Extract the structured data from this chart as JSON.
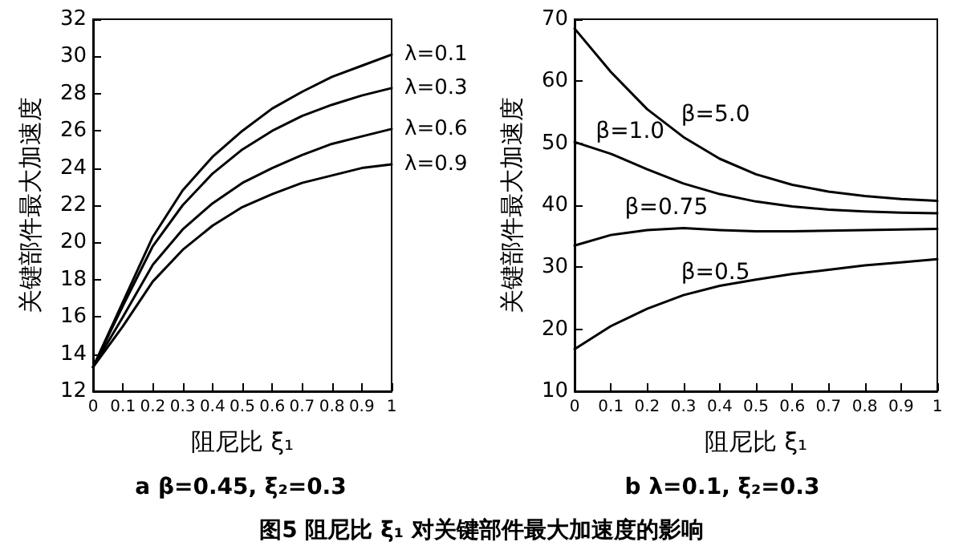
{
  "chart_data": [
    {
      "type": "line",
      "subtitle": "a β=0.45, ξ₂=0.3",
      "xlabel": "阻尼比 ξ₁",
      "ylabel": "关键部件最大加速度",
      "x": [
        0,
        0.1,
        0.2,
        0.3,
        0.4,
        0.5,
        0.6,
        0.7,
        0.8,
        0.9,
        1
      ],
      "series": [
        {
          "name": "λ=0.1",
          "color": "#000000",
          "values": [
            13.3,
            16.8,
            20.3,
            22.8,
            24.6,
            26.0,
            27.2,
            28.1,
            28.9,
            29.5,
            30.1
          ]
        },
        {
          "name": "λ=0.3",
          "color": "#000000",
          "values": [
            13.3,
            16.6,
            19.8,
            22.0,
            23.7,
            25.0,
            26.0,
            26.8,
            27.4,
            27.9,
            28.3
          ]
        },
        {
          "name": "λ=0.6",
          "color": "#000000",
          "values": [
            13.3,
            16.0,
            18.8,
            20.7,
            22.1,
            23.2,
            24.0,
            24.7,
            25.3,
            25.7,
            26.1
          ]
        },
        {
          "name": "λ=0.9",
          "color": "#000000",
          "values": [
            13.3,
            15.5,
            17.9,
            19.6,
            20.9,
            21.9,
            22.6,
            23.2,
            23.6,
            24.0,
            24.2
          ]
        }
      ],
      "xlim": [
        0,
        1
      ],
      "xticks": [
        0,
        0.1,
        0.2,
        0.3,
        0.4,
        0.5,
        0.6,
        0.7,
        0.8,
        0.9,
        1
      ],
      "ylim": [
        12,
        32
      ],
      "yticks": [
        12,
        14,
        16,
        18,
        20,
        22,
        24,
        26,
        28,
        30,
        32
      ],
      "grid": false,
      "legend": false,
      "marker": "none",
      "line_style": "solid",
      "annotations": [
        "图5 阻尼比 ξ₁ 对关键部件最大加速度的影响"
      ]
    },
    {
      "type": "line",
      "subtitle": "b λ=0.1, ξ₂=0.3",
      "xlabel": "阻尼比 ξ₁",
      "ylabel": "关键部件最大加速度",
      "x": [
        0,
        0.1,
        0.2,
        0.3,
        0.4,
        0.5,
        0.6,
        0.7,
        0.8,
        0.9,
        1
      ],
      "series": [
        {
          "name": "β=5.0",
          "color": "#000000",
          "values": [
            68.5,
            61.5,
            55.5,
            51.0,
            47.5,
            45.0,
            43.3,
            42.2,
            41.5,
            41.0,
            40.7
          ]
        },
        {
          "name": "β=1.0",
          "color": "#000000",
          "values": [
            50.2,
            48.3,
            45.8,
            43.5,
            41.8,
            40.6,
            39.8,
            39.3,
            39.0,
            38.8,
            38.7
          ]
        },
        {
          "name": "β=0.75",
          "color": "#000000",
          "values": [
            33.5,
            35.2,
            36.0,
            36.3,
            36.0,
            35.8,
            35.8,
            35.9,
            36.0,
            36.1,
            36.2
          ]
        },
        {
          "name": "β=0.5",
          "color": "#000000",
          "values": [
            16.8,
            20.5,
            23.3,
            25.5,
            27.0,
            28.0,
            28.9,
            29.6,
            30.3,
            30.8,
            31.3
          ]
        }
      ],
      "xlim": [
        0,
        1
      ],
      "xticks": [
        0,
        0.1,
        0.2,
        0.3,
        0.4,
        0.5,
        0.6,
        0.7,
        0.8,
        0.9,
        1
      ],
      "ylim": [
        10,
        70
      ],
      "yticks": [
        10,
        20,
        30,
        40,
        50,
        60,
        70
      ],
      "grid": false,
      "legend": false,
      "marker": "none",
      "line_style": "solid"
    }
  ]
}
